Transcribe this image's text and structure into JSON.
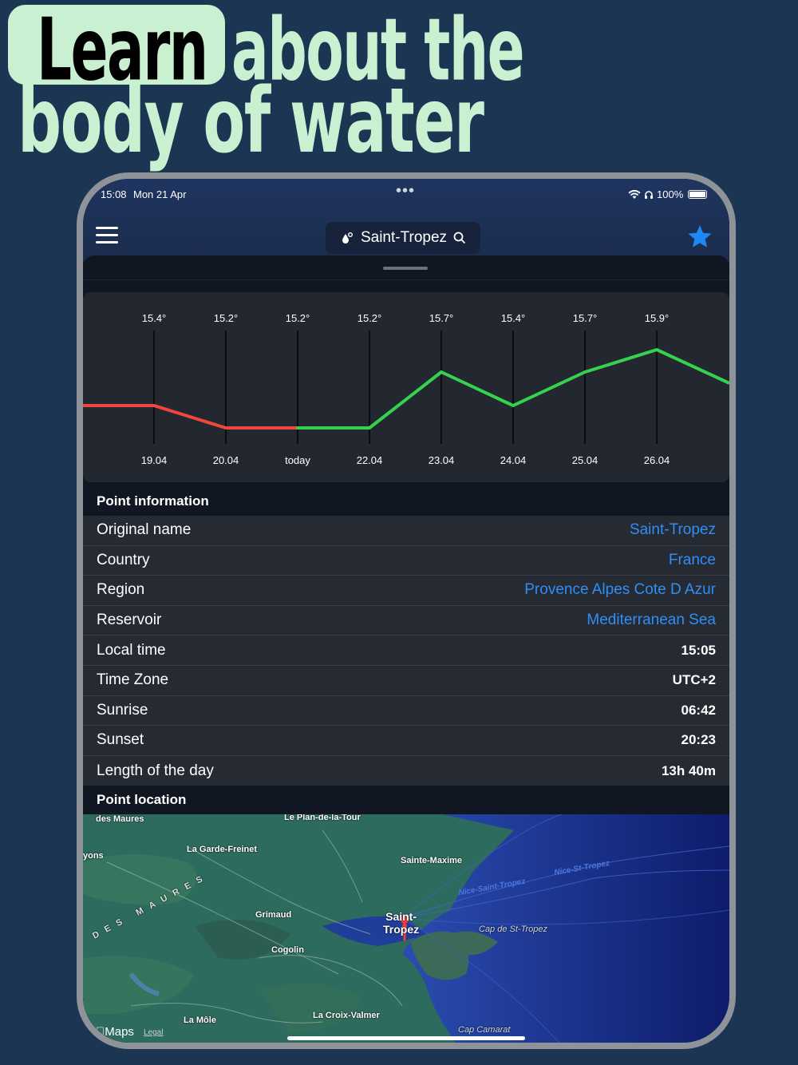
{
  "headline": {
    "highlight": "Learn",
    "line1_rest": "about the",
    "line2": "body of water"
  },
  "status_bar": {
    "time": "15:08",
    "date": "Mon 21 Apr",
    "battery": "100%"
  },
  "nav": {
    "location": "Saint-Tropez"
  },
  "colors": {
    "background": "#1b3552",
    "headline_accent": "#c9f0d0",
    "link": "#2f8ff5",
    "favorite_star": "#1e88f5",
    "trend_down": "#f0463c",
    "trend_up": "#35d24e"
  },
  "chart_data": {
    "type": "line",
    "x": [
      "19.04",
      "20.04",
      "today",
      "22.04",
      "23.04",
      "24.04",
      "25.04",
      "26.04"
    ],
    "top_labels": [
      "15.4°",
      "15.2°",
      "15.2°",
      "15.2°",
      "15.7°",
      "15.4°",
      "15.7°",
      "15.9°"
    ],
    "series": [
      {
        "values": [
          15.4,
          15.2,
          15.2,
          15.2,
          15.7,
          15.4,
          15.7,
          15.9
        ]
      }
    ],
    "ylabel": "",
    "xlabel": "",
    "grid": "vertical lines at each day"
  },
  "point_information": {
    "title": "Point information",
    "rows": [
      {
        "label": "Original name",
        "value": "Saint-Tropez",
        "link": true
      },
      {
        "label": "Country",
        "value": "France",
        "link": true
      },
      {
        "label": "Region",
        "value": "Provence Alpes Cote D Azur",
        "link": true
      },
      {
        "label": "Reservoir",
        "value": "Mediterranean Sea",
        "link": true
      },
      {
        "label": "Local time",
        "value": "15:05",
        "link": false
      },
      {
        "label": "Time Zone",
        "value": "UTC+2",
        "link": false
      },
      {
        "label": "Sunrise",
        "value": "06:42",
        "link": false
      },
      {
        "label": "Sunset",
        "value": "20:23",
        "link": false
      },
      {
        "label": "Length of the day",
        "value": "13h 40m",
        "link": false
      }
    ]
  },
  "point_location": {
    "title": "Point location",
    "labels": {
      "des_maures": "des Maures",
      "plan_de_la_tour": "Le Plan-de-la-Tour",
      "garde_freinet": "La Garde-Freinet",
      "yons": "yons",
      "sainte_maxime": "Sainte-Maxime",
      "route1": "Nice-Saint-Tropez",
      "route2": "Nice-St-Tropez",
      "maures_region": "DES MAURES",
      "grimaud": "Grimaud",
      "saint_tropez_1": "Saint-",
      "saint_tropez_2": "Tropez",
      "cap_st_tropez": "Cap de St-Tropez",
      "cogolin": "Cogolin",
      "la_mole": "La Môle",
      "croix_valmer": "La Croix-Valmer",
      "cap_camarat": "Cap Camarat"
    },
    "attribution": "Maps",
    "legal": "Legal"
  }
}
